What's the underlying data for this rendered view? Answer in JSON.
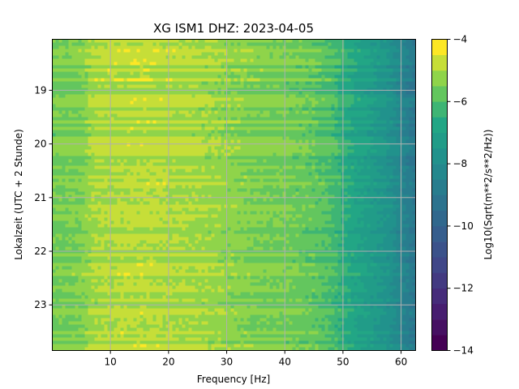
{
  "chart_data": {
    "type": "heatmap",
    "title": "XG ISM1  DHZ: 2023-04-05",
    "xlabel": "Frequency [Hz]",
    "ylabel": "Lokalzeit (UTC + 2 Stunde)",
    "colorbar_label": "Log10(Sqrt(m**2/s**2/Hz))",
    "xlim": [
      0,
      62.5
    ],
    "ylim": [
      18.05,
      23.85
    ],
    "y_inverted": true,
    "x_ticks": [
      10,
      20,
      30,
      40,
      50,
      60
    ],
    "y_ticks": [
      19,
      20,
      21,
      22,
      23
    ],
    "colorbar_range": [
      -14,
      -4
    ],
    "colorbar_ticks": [
      -14,
      -12,
      -10,
      -8,
      -6,
      -4
    ],
    "colormap": "viridis",
    "grid": true,
    "spectrum_profile": {
      "frequency_hz": [
        0,
        5,
        7,
        10,
        15,
        20,
        25,
        30,
        35,
        40,
        45,
        48,
        50,
        52,
        55,
        58,
        60,
        62.5
      ],
      "log10_amplitude": [
        -5.5,
        -5.4,
        -5.0,
        -4.9,
        -4.8,
        -4.9,
        -5.0,
        -5.2,
        -5.4,
        -5.5,
        -5.7,
        -6.0,
        -6.4,
        -6.8,
        -7.2,
        -7.7,
        -8.3,
        -9.0
      ]
    }
  }
}
